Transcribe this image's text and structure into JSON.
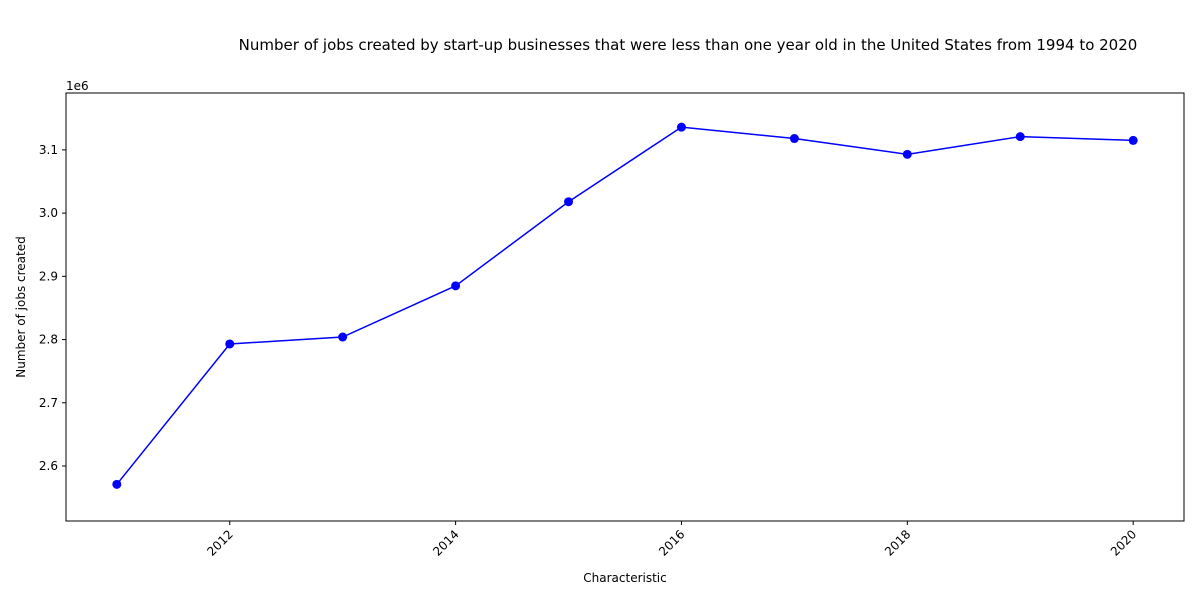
{
  "chart_data": {
    "type": "line",
    "title": "Number of jobs created by start-up businesses that were less than one year old in the United States from 1994 to 2020",
    "xlabel": "Characteristic",
    "ylabel": "Number of jobs created",
    "y_offset_label": "1e6",
    "x": [
      2011,
      2012,
      2013,
      2014,
      2015,
      2016,
      2017,
      2018,
      2019,
      2020
    ],
    "series": [
      {
        "values": [
          2571000,
          2793000,
          2804000,
          2885000,
          3018000,
          3136000,
          3118000,
          3093000,
          3121000,
          3115000
        ],
        "color": "#0000ff",
        "marker": "circle"
      }
    ],
    "xlim": [
      2010.55,
      2020.45
    ],
    "ylim": [
      2.513,
      3.19
    ],
    "x_ticks": [
      "2012",
      "2014",
      "2016",
      "2018",
      "2020"
    ],
    "x_tick_values": [
      2012,
      2014,
      2016,
      2018,
      2020
    ],
    "y_ticks": [
      "2.6",
      "2.7",
      "2.8",
      "2.9",
      "3.0",
      "3.1"
    ],
    "y_tick_values": [
      2.6,
      2.7,
      2.8,
      2.9,
      3.0,
      3.1
    ],
    "grid": false,
    "legend": "none"
  }
}
